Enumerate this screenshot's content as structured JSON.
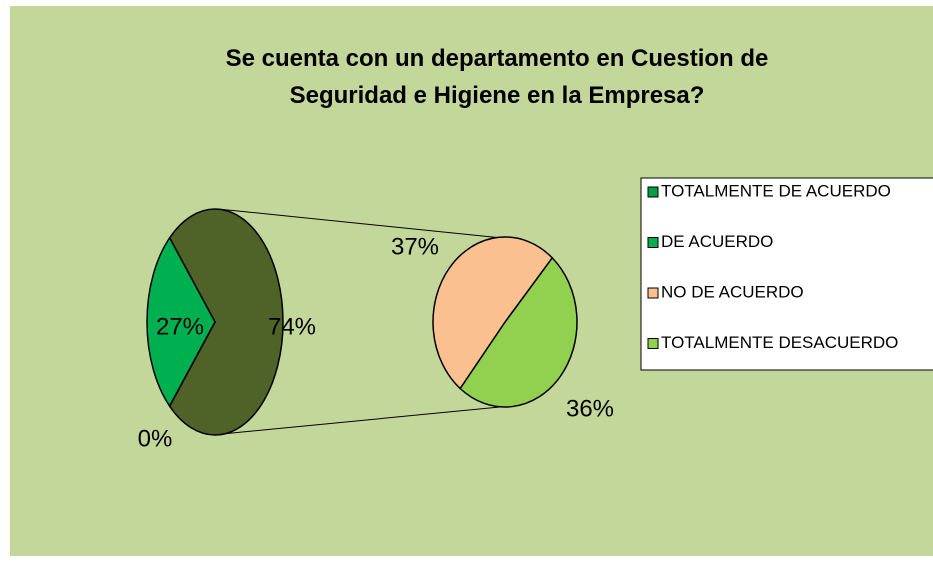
{
  "chart_data": {
    "type": "pie-of-pie",
    "title": "Se cuenta con un departamento en Cuestion de Seguridad e Higiene en la Empresa?",
    "series": [
      {
        "name": "TOTALMENTE DE ACUERDO",
        "color": "#009e47",
        "values": [
          0
        ],
        "value_labels": [
          "0%"
        ]
      },
      {
        "name": "DE ACUERDO",
        "color": "#00b050",
        "values": [
          27
        ],
        "value_labels": [
          "27%"
        ]
      },
      {
        "name": "NO DE ACUERDO",
        "color": "#fac090",
        "values": [
          37
        ],
        "value_labels": [
          "37%"
        ]
      },
      {
        "name": "TOTALMENTE DESACUERDO",
        "color": "#92d050",
        "values": [
          36
        ],
        "value_labels": [
          "36%"
        ]
      }
    ],
    "other_value": 74,
    "other_value_label": "74%",
    "other_color": "#4f6228",
    "legend": "right"
  }
}
